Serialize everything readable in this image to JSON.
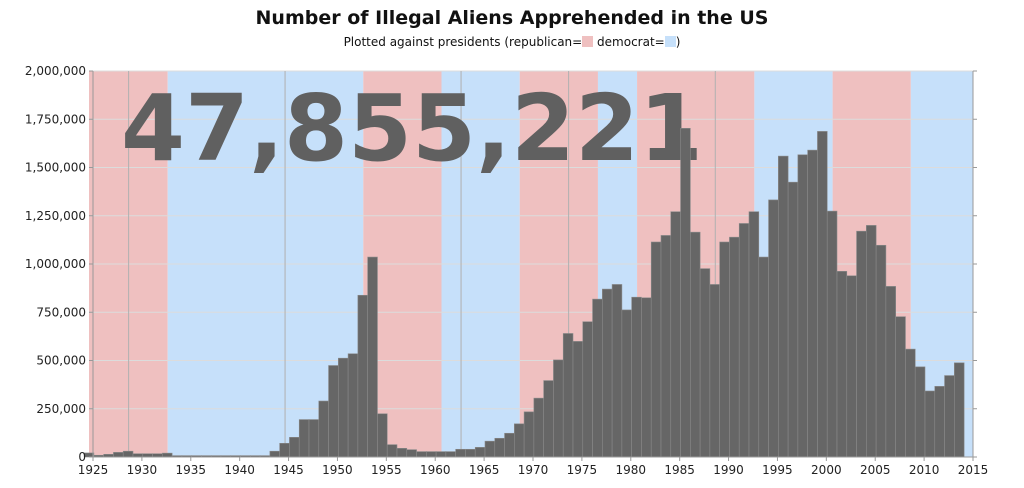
{
  "chart_data": {
    "type": "bar",
    "title": "Number of Illegal Aliens Apprehended in the US",
    "subtitle": {
      "prefix": "Plotted against presidents (republican=",
      "middle": " democrat=",
      "suffix": ")"
    },
    "annotation": "47,855,221",
    "xlim": [
      1925,
      2015
    ],
    "ylim": [
      0,
      2000000
    ],
    "x_ticks": [
      1925,
      1930,
      1935,
      1940,
      1945,
      1950,
      1955,
      1960,
      1965,
      1970,
      1975,
      1980,
      1985,
      1990,
      1995,
      2000,
      2005,
      2010,
      2015
    ],
    "y_ticks": [
      "0",
      "250,000",
      "500,000",
      "750,000",
      "1,000,000",
      "1,250,000",
      "1,500,000",
      "1,750,000",
      "2,000,000"
    ],
    "y_tick_values": [
      0,
      250000,
      500000,
      750000,
      1000000,
      1250000,
      1500000,
      1750000,
      2000000
    ],
    "grid": true,
    "colors": {
      "republican": "#efc0c0",
      "democrat": "#c6e0fa",
      "bar": "#666666",
      "annotation": "#606060"
    },
    "presidencies": [
      {
        "start": 1925,
        "end": 1929,
        "party": "republican"
      },
      {
        "start": 1929,
        "end": 1933,
        "party": "republican"
      },
      {
        "start": 1933,
        "end": 1945,
        "party": "democrat"
      },
      {
        "start": 1945,
        "end": 1953,
        "party": "democrat"
      },
      {
        "start": 1953,
        "end": 1961,
        "party": "republican"
      },
      {
        "start": 1961,
        "end": 1963,
        "party": "democrat"
      },
      {
        "start": 1963,
        "end": 1969,
        "party": "democrat"
      },
      {
        "start": 1969,
        "end": 1974,
        "party": "republican"
      },
      {
        "start": 1974,
        "end": 1977,
        "party": "republican"
      },
      {
        "start": 1977,
        "end": 1981,
        "party": "democrat"
      },
      {
        "start": 1981,
        "end": 1989,
        "party": "republican"
      },
      {
        "start": 1989,
        "end": 1993,
        "party": "republican"
      },
      {
        "start": 1993,
        "end": 2001,
        "party": "democrat"
      },
      {
        "start": 2001,
        "end": 2009,
        "party": "republican"
      },
      {
        "start": 2009,
        "end": 2015,
        "party": "democrat"
      }
    ],
    "years": [
      1925,
      1926,
      1927,
      1928,
      1929,
      1930,
      1931,
      1932,
      1933,
      1934,
      1935,
      1936,
      1937,
      1938,
      1939,
      1940,
      1941,
      1942,
      1943,
      1944,
      1945,
      1946,
      1947,
      1948,
      1949,
      1950,
      1951,
      1952,
      1953,
      1954,
      1955,
      1956,
      1957,
      1958,
      1959,
      1960,
      1961,
      1962,
      1963,
      1964,
      1965,
      1966,
      1967,
      1968,
      1969,
      1970,
      1971,
      1972,
      1973,
      1974,
      1975,
      1976,
      1977,
      1978,
      1979,
      1980,
      1981,
      1982,
      1983,
      1984,
      1985,
      1986,
      1987,
      1988,
      1989,
      1990,
      1991,
      1992,
      1993,
      1994,
      1995,
      1996,
      1997,
      1998,
      1999,
      2000,
      2001,
      2002,
      2003,
      2004,
      2005,
      2006,
      2007,
      2008,
      2009,
      2010,
      2011,
      2012,
      2013,
      2014
    ],
    "values": [
      21000,
      9000,
      14000,
      24000,
      30000,
      17000,
      17000,
      17000,
      20000,
      7000,
      7000,
      7000,
      7000,
      7000,
      7000,
      7000,
      7000,
      7000,
      7000,
      30000,
      71000,
      102000,
      194000,
      194000,
      290000,
      474000,
      512000,
      535000,
      838000,
      1036000,
      224000,
      64000,
      45000,
      38000,
      28000,
      28000,
      28000,
      28000,
      40000,
      40000,
      50000,
      82000,
      97000,
      123000,
      172000,
      234000,
      305000,
      396000,
      503000,
      640000,
      599000,
      701000,
      818000,
      870000,
      894000,
      762000,
      828000,
      825000,
      1114000,
      1148000,
      1271000,
      1703000,
      1165000,
      976000,
      894000,
      1114000,
      1139000,
      1210000,
      1271000,
      1036000,
      1332000,
      1559000,
      1424000,
      1566000,
      1590000,
      1687000,
      1274000,
      962000,
      939000,
      1170000,
      1200000,
      1097000,
      884000,
      727000,
      559000,
      467000,
      342000,
      366000,
      422000,
      488000
    ]
  }
}
